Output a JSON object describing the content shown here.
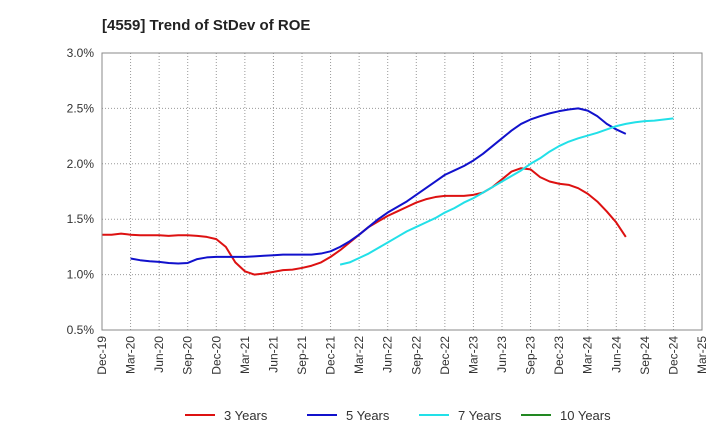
{
  "chart_data": {
    "type": "line",
    "title": "[4559]  Trend of StDev of ROE",
    "xlabel": "",
    "ylabel": "",
    "ylim": [
      0.5,
      3.0
    ],
    "yticks": [
      "0.5%",
      "1.0%",
      "1.5%",
      "2.0%",
      "2.5%",
      "3.0%"
    ],
    "ytick_values": [
      0.5,
      1.0,
      1.5,
      2.0,
      2.5,
      3.0
    ],
    "xticks": [
      "Dec-19",
      "Mar-20",
      "Jun-20",
      "Sep-20",
      "Dec-20",
      "Mar-21",
      "Jun-21",
      "Sep-21",
      "Dec-21",
      "Mar-22",
      "Jun-22",
      "Sep-22",
      "Dec-22",
      "Mar-23",
      "Jun-23",
      "Sep-23",
      "Dec-23",
      "Mar-24",
      "Jun-24",
      "Sep-24",
      "Dec-24",
      "Mar-25"
    ],
    "grid": true,
    "legend_position": "bottom",
    "series": [
      {
        "name": "3 Years",
        "color": "#dd1111",
        "start_index": 0,
        "values": [
          1.36,
          1.36,
          1.37,
          1.36,
          1.355,
          1.355,
          1.355,
          1.35,
          1.355,
          1.355,
          1.35,
          1.34,
          1.32,
          1.25,
          1.11,
          1.03,
          1.0,
          1.01,
          1.025,
          1.04,
          1.045,
          1.06,
          1.08,
          1.11,
          1.16,
          1.22,
          1.29,
          1.36,
          1.43,
          1.48,
          1.53,
          1.57,
          1.61,
          1.65,
          1.68,
          1.7,
          1.71,
          1.71,
          1.71,
          1.72,
          1.74,
          1.79,
          1.86,
          1.93,
          1.96,
          1.95,
          1.88,
          1.84,
          1.82,
          1.81,
          1.78,
          1.73,
          1.66,
          1.57,
          1.47,
          1.34
        ]
      },
      {
        "name": "5 Years",
        "color": "#1111cc",
        "start_index": 3,
        "values": [
          1.145,
          1.13,
          1.12,
          1.115,
          1.105,
          1.1,
          1.105,
          1.14,
          1.155,
          1.16,
          1.16,
          1.16,
          1.16,
          1.165,
          1.17,
          1.175,
          1.18,
          1.18,
          1.18,
          1.18,
          1.19,
          1.21,
          1.25,
          1.3,
          1.36,
          1.43,
          1.5,
          1.56,
          1.61,
          1.66,
          1.72,
          1.78,
          1.84,
          1.9,
          1.94,
          1.98,
          2.03,
          2.09,
          2.16,
          2.23,
          2.3,
          2.36,
          2.4,
          2.43,
          2.455,
          2.475,
          2.49,
          2.5,
          2.48,
          2.43,
          2.36,
          2.31,
          2.27
        ]
      },
      {
        "name": "7 Years",
        "color": "#22e0e8",
        "start_index": 25,
        "values": [
          1.09,
          1.11,
          1.15,
          1.19,
          1.24,
          1.29,
          1.34,
          1.39,
          1.43,
          1.47,
          1.51,
          1.56,
          1.6,
          1.65,
          1.69,
          1.74,
          1.79,
          1.84,
          1.89,
          1.94,
          2.0,
          2.05,
          2.11,
          2.16,
          2.2,
          2.23,
          2.255,
          2.28,
          2.31,
          2.34,
          2.36,
          2.375,
          2.385,
          2.39,
          2.4,
          2.41
        ]
      },
      {
        "name": "10 Years",
        "color": "#228822",
        "start_index": 0,
        "values": []
      }
    ]
  }
}
